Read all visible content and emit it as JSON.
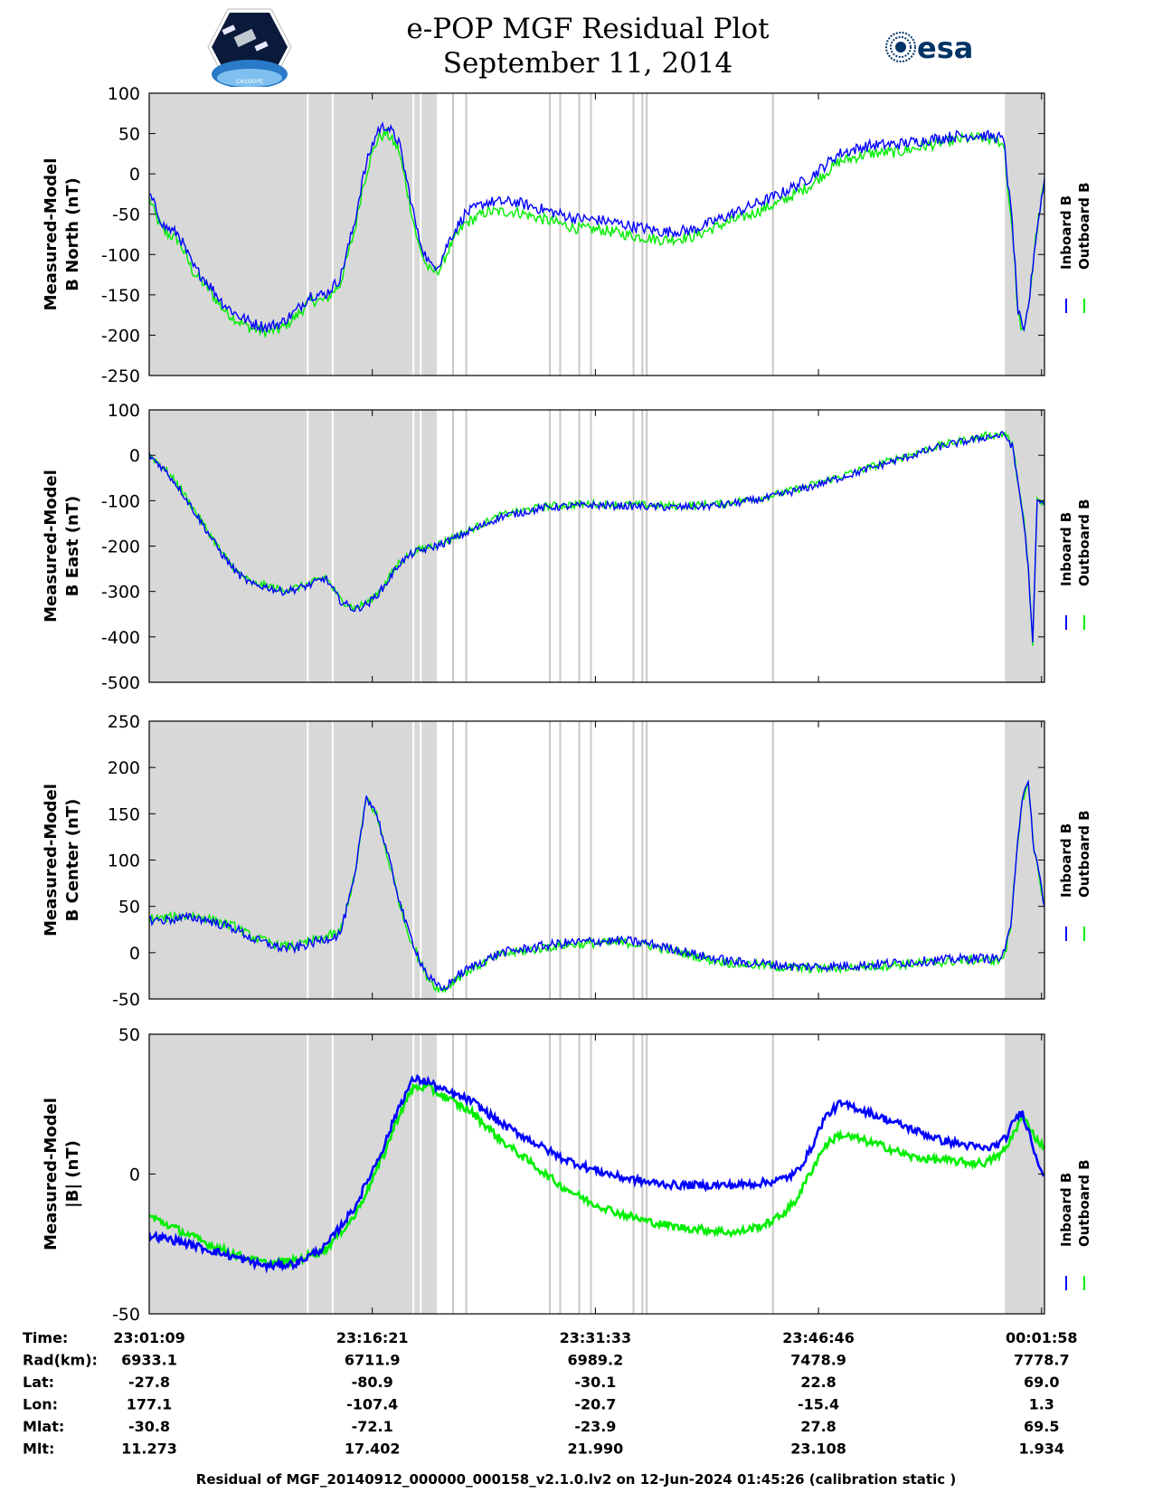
{
  "header": {
    "title": "e-POP MGF Residual Plot",
    "subtitle": "September 11, 2014",
    "left_logo_text": "CASSIOPE",
    "right_logo_text": "esa"
  },
  "colors": {
    "inboard": "#0000ff",
    "outboard": "#00ee00",
    "shade": "#d8d8d8",
    "marker_line": "#c8c8c8"
  },
  "chart_data": {
    "type": "line",
    "x_range_minutes": [
      0,
      61
    ],
    "x_tick_minutes": [
      0,
      15.2,
      30.4,
      45.6,
      60.8
    ],
    "shaded_regions_minutes": [
      [
        0,
        19.6
      ],
      [
        58.3,
        61
      ]
    ],
    "marker_lines_minutes": [
      10.8,
      12.5,
      18.0,
      18.5,
      20.7,
      21.6,
      27.3,
      28.0,
      29.3,
      30.1,
      33.0,
      33.6,
      33.9,
      42.5
    ],
    "legend": [
      "Inboard B",
      "Outboard B"
    ],
    "panels": [
      {
        "ylabel_line1": "Measured-Model",
        "ylabel_line2": "B North (nT)",
        "ylim": [
          -250,
          100
        ],
        "yticks": [
          "100",
          "50",
          "0",
          "-50",
          "-100",
          "-150",
          "-200",
          "-250"
        ],
        "x": [
          0,
          0.5,
          1,
          2,
          3,
          4,
          5,
          6,
          7,
          8,
          9,
          10,
          11,
          12,
          13,
          14,
          14.5,
          15,
          15.6,
          16.2,
          17,
          17.8,
          18.3,
          18.8,
          19.2,
          19.8,
          20.5,
          21.5,
          23,
          25,
          27,
          29,
          31,
          33,
          35,
          37,
          39,
          41,
          43,
          45,
          47,
          49,
          51,
          53,
          55,
          56.5,
          58,
          58.3,
          58.5,
          58.8,
          59.2,
          59.6,
          60,
          60.4,
          61
        ],
        "series": [
          {
            "name": "Inboard B",
            "noise": 7,
            "values": [
              -25,
              -45,
              -65,
              -75,
              -115,
              -135,
              -160,
              -175,
              -185,
              -190,
              -185,
              -170,
              -150,
              -150,
              -130,
              -60,
              -10,
              25,
              55,
              60,
              40,
              -30,
              -75,
              -100,
              -115,
              -110,
              -80,
              -50,
              -35,
              -35,
              -45,
              -55,
              -58,
              -65,
              -72,
              -70,
              -55,
              -40,
              -25,
              -5,
              25,
              35,
              37,
              42,
              47,
              48,
              45,
              35,
              -10,
              -60,
              -170,
              -200,
              -150,
              -80,
              -5
            ]
          },
          {
            "name": "Outboard B",
            "noise": 7,
            "values": [
              -30,
              -55,
              -72,
              -82,
              -122,
              -142,
              -167,
              -182,
              -192,
              -196,
              -192,
              -177,
              -157,
              -157,
              -137,
              -70,
              -20,
              15,
              45,
              50,
              30,
              -40,
              -85,
              -110,
              -122,
              -118,
              -90,
              -62,
              -47,
              -47,
              -57,
              -67,
              -70,
              -77,
              -82,
              -78,
              -63,
              -50,
              -35,
              -15,
              15,
              25,
              27,
              35,
              42,
              45,
              40,
              30,
              -20,
              -65,
              -175,
              -200,
              -150,
              -80,
              -8
            ]
          }
        ]
      },
      {
        "ylabel_line1": "Measured-Model",
        "ylabel_line2": "B East (nT)",
        "ylim": [
          -500,
          100
        ],
        "yticks": [
          "100",
          "0",
          "-100",
          "-200",
          "-300",
          "-400",
          "-500"
        ],
        "x": [
          0,
          1,
          2,
          3,
          4,
          5,
          6,
          7,
          8,
          9,
          10,
          11,
          12,
          13,
          14,
          15,
          16,
          17,
          18,
          19,
          20,
          22,
          24,
          27,
          30,
          33,
          36,
          39,
          42,
          45,
          48,
          51,
          54,
          57,
          58.3,
          58.8,
          59.2,
          59.6,
          59.9,
          60.2,
          60.5,
          61
        ],
        "series": [
          {
            "name": "Inboard B",
            "noise": 5,
            "values": [
              0,
              -30,
              -70,
              -120,
              -170,
              -220,
              -260,
              -285,
              -290,
              -300,
              -295,
              -285,
              -270,
              -320,
              -340,
              -325,
              -290,
              -240,
              -215,
              -205,
              -195,
              -165,
              -135,
              -115,
              -110,
              -112,
              -115,
              -110,
              -95,
              -70,
              -40,
              -10,
              20,
              40,
              45,
              20,
              -60,
              -150,
              -250,
              -420,
              -100,
              -110
            ]
          },
          {
            "name": "Outboard B",
            "noise": 5,
            "values": [
              2,
              -28,
              -67,
              -117,
              -167,
              -217,
              -257,
              -282,
              -287,
              -297,
              -292,
              -282,
              -267,
              -317,
              -337,
              -322,
              -287,
              -237,
              -212,
              -202,
              -192,
              -162,
              -132,
              -112,
              -107,
              -109,
              -112,
              -107,
              -92,
              -67,
              -37,
              -7,
              23,
              43,
              48,
              23,
              -57,
              -147,
              -247,
              -420,
              -98,
              -108
            ]
          }
        ]
      },
      {
        "ylabel_line1": "Measured-Model",
        "ylabel_line2": "B Center (nT)",
        "ylim": [
          -50,
          250
        ],
        "yticks": [
          "250",
          "200",
          "150",
          "100",
          "50",
          "0",
          "-50"
        ],
        "x": [
          0,
          1,
          2,
          3,
          4,
          5,
          6,
          7,
          8,
          9,
          10,
          11,
          12,
          13,
          14,
          14.8,
          15.5,
          16,
          16.5,
          17,
          17.5,
          18,
          18.5,
          19,
          19.5,
          20,
          21,
          22,
          24,
          26,
          28,
          30,
          32,
          33,
          34,
          36,
          38,
          40,
          42,
          44,
          46,
          48,
          50,
          52,
          54,
          56,
          58,
          58.3,
          58.7,
          59.1,
          59.5,
          59.9,
          60.3,
          60.7,
          61
        ],
        "series": [
          {
            "name": "Inboard B",
            "noise": 6,
            "values": [
              35,
              35,
              37,
              38,
              35,
              30,
              25,
              15,
              10,
              5,
              5,
              10,
              15,
              20,
              80,
              170,
              150,
              120,
              90,
              60,
              30,
              10,
              -10,
              -25,
              -35,
              -40,
              -25,
              -15,
              0,
              5,
              10,
              12,
              13,
              12,
              10,
              3,
              -5,
              -10,
              -12,
              -15,
              -15,
              -14,
              -12,
              -10,
              -8,
              -6,
              -6,
              0,
              30,
              110,
              170,
              180,
              110,
              80,
              50
            ]
          },
          {
            "name": "Outboard B",
            "noise": 6,
            "values": [
              37,
              37,
              39,
              40,
              37,
              32,
              27,
              17,
              12,
              7,
              7,
              12,
              17,
              22,
              82,
              168,
              148,
              118,
              88,
              58,
              28,
              8,
              -12,
              -27,
              -36,
              -41,
              -27,
              -17,
              -2,
              3,
              8,
              10,
              11,
              10,
              8,
              1,
              -7,
              -12,
              -14,
              -17,
              -17,
              -16,
              -14,
              -12,
              -10,
              -8,
              -8,
              -2,
              28,
              108,
              168,
              178,
              108,
              78,
              48
            ]
          }
        ]
      },
      {
        "ylabel_line1": "Measured-Model",
        "ylabel_line2": "|B| (nT)",
        "ylim": [
          -50,
          50
        ],
        "yticks": [
          "50",
          "0",
          "-50"
        ],
        "x": [
          0,
          2,
          4,
          6,
          8,
          10,
          12,
          14,
          16,
          17,
          18,
          19,
          20,
          22,
          24,
          26,
          28,
          30,
          32,
          34,
          36,
          38,
          40,
          42,
          43,
          44,
          45,
          46,
          47,
          48,
          50,
          52,
          54,
          56,
          57,
          58,
          58.5,
          59,
          59.5,
          60,
          60.5,
          61
        ],
        "series": [
          {
            "name": "Inboard B",
            "noise": 5,
            "values": [
              -22,
              -24,
              -27,
              -30,
              -33,
              -32,
              -26,
              -12,
              10,
              24,
              34,
              33,
              30,
              26,
              18,
              12,
              6,
              2,
              -1,
              -3,
              -4,
              -4,
              -4,
              -3,
              -2,
              0,
              8,
              20,
              25,
              24,
              20,
              16,
              12,
              10,
              9,
              11,
              14,
              20,
              22,
              14,
              5,
              0
            ]
          },
          {
            "name": "Outboard B",
            "noise": 5,
            "values": [
              -15,
              -20,
              -25,
              -29,
              -32,
              -31,
              -27,
              -15,
              7,
              21,
              31,
              31,
              28,
              22,
              12,
              4,
              -4,
              -10,
              -14,
              -17,
              -19,
              -20,
              -21,
              -18,
              -15,
              -10,
              0,
              10,
              14,
              13,
              10,
              6,
              5,
              4,
              4,
              7,
              10,
              16,
              20,
              17,
              12,
              10
            ]
          }
        ]
      }
    ]
  },
  "footer": {
    "rows": [
      {
        "label": "Time:",
        "values": [
          "23:01:09",
          "23:16:21",
          "23:31:33",
          "23:46:46",
          "00:01:58"
        ]
      },
      {
        "label": "Rad(km):",
        "values": [
          "6933.1",
          "6711.9",
          "6989.2",
          "7478.9",
          "7778.7"
        ]
      },
      {
        "label": "Lat:",
        "values": [
          "-27.8",
          "-80.9",
          "-30.1",
          "22.8",
          "69.0"
        ]
      },
      {
        "label": "Lon:",
        "values": [
          "177.1",
          "-107.4",
          "-20.7",
          "-15.4",
          "1.3"
        ]
      },
      {
        "label": "Mlat:",
        "values": [
          "-30.8",
          "-72.1",
          "-23.9",
          "27.8",
          "69.5"
        ]
      },
      {
        "label": "Mlt:",
        "values": [
          "11.273",
          "17.402",
          "21.990",
          "23.108",
          "1.934"
        ]
      }
    ],
    "caption": "Residual of MGF_20140912_000000_000158_v2.1.0.lv2 on 12-Jun-2024 01:45:26 (calibration static )"
  }
}
